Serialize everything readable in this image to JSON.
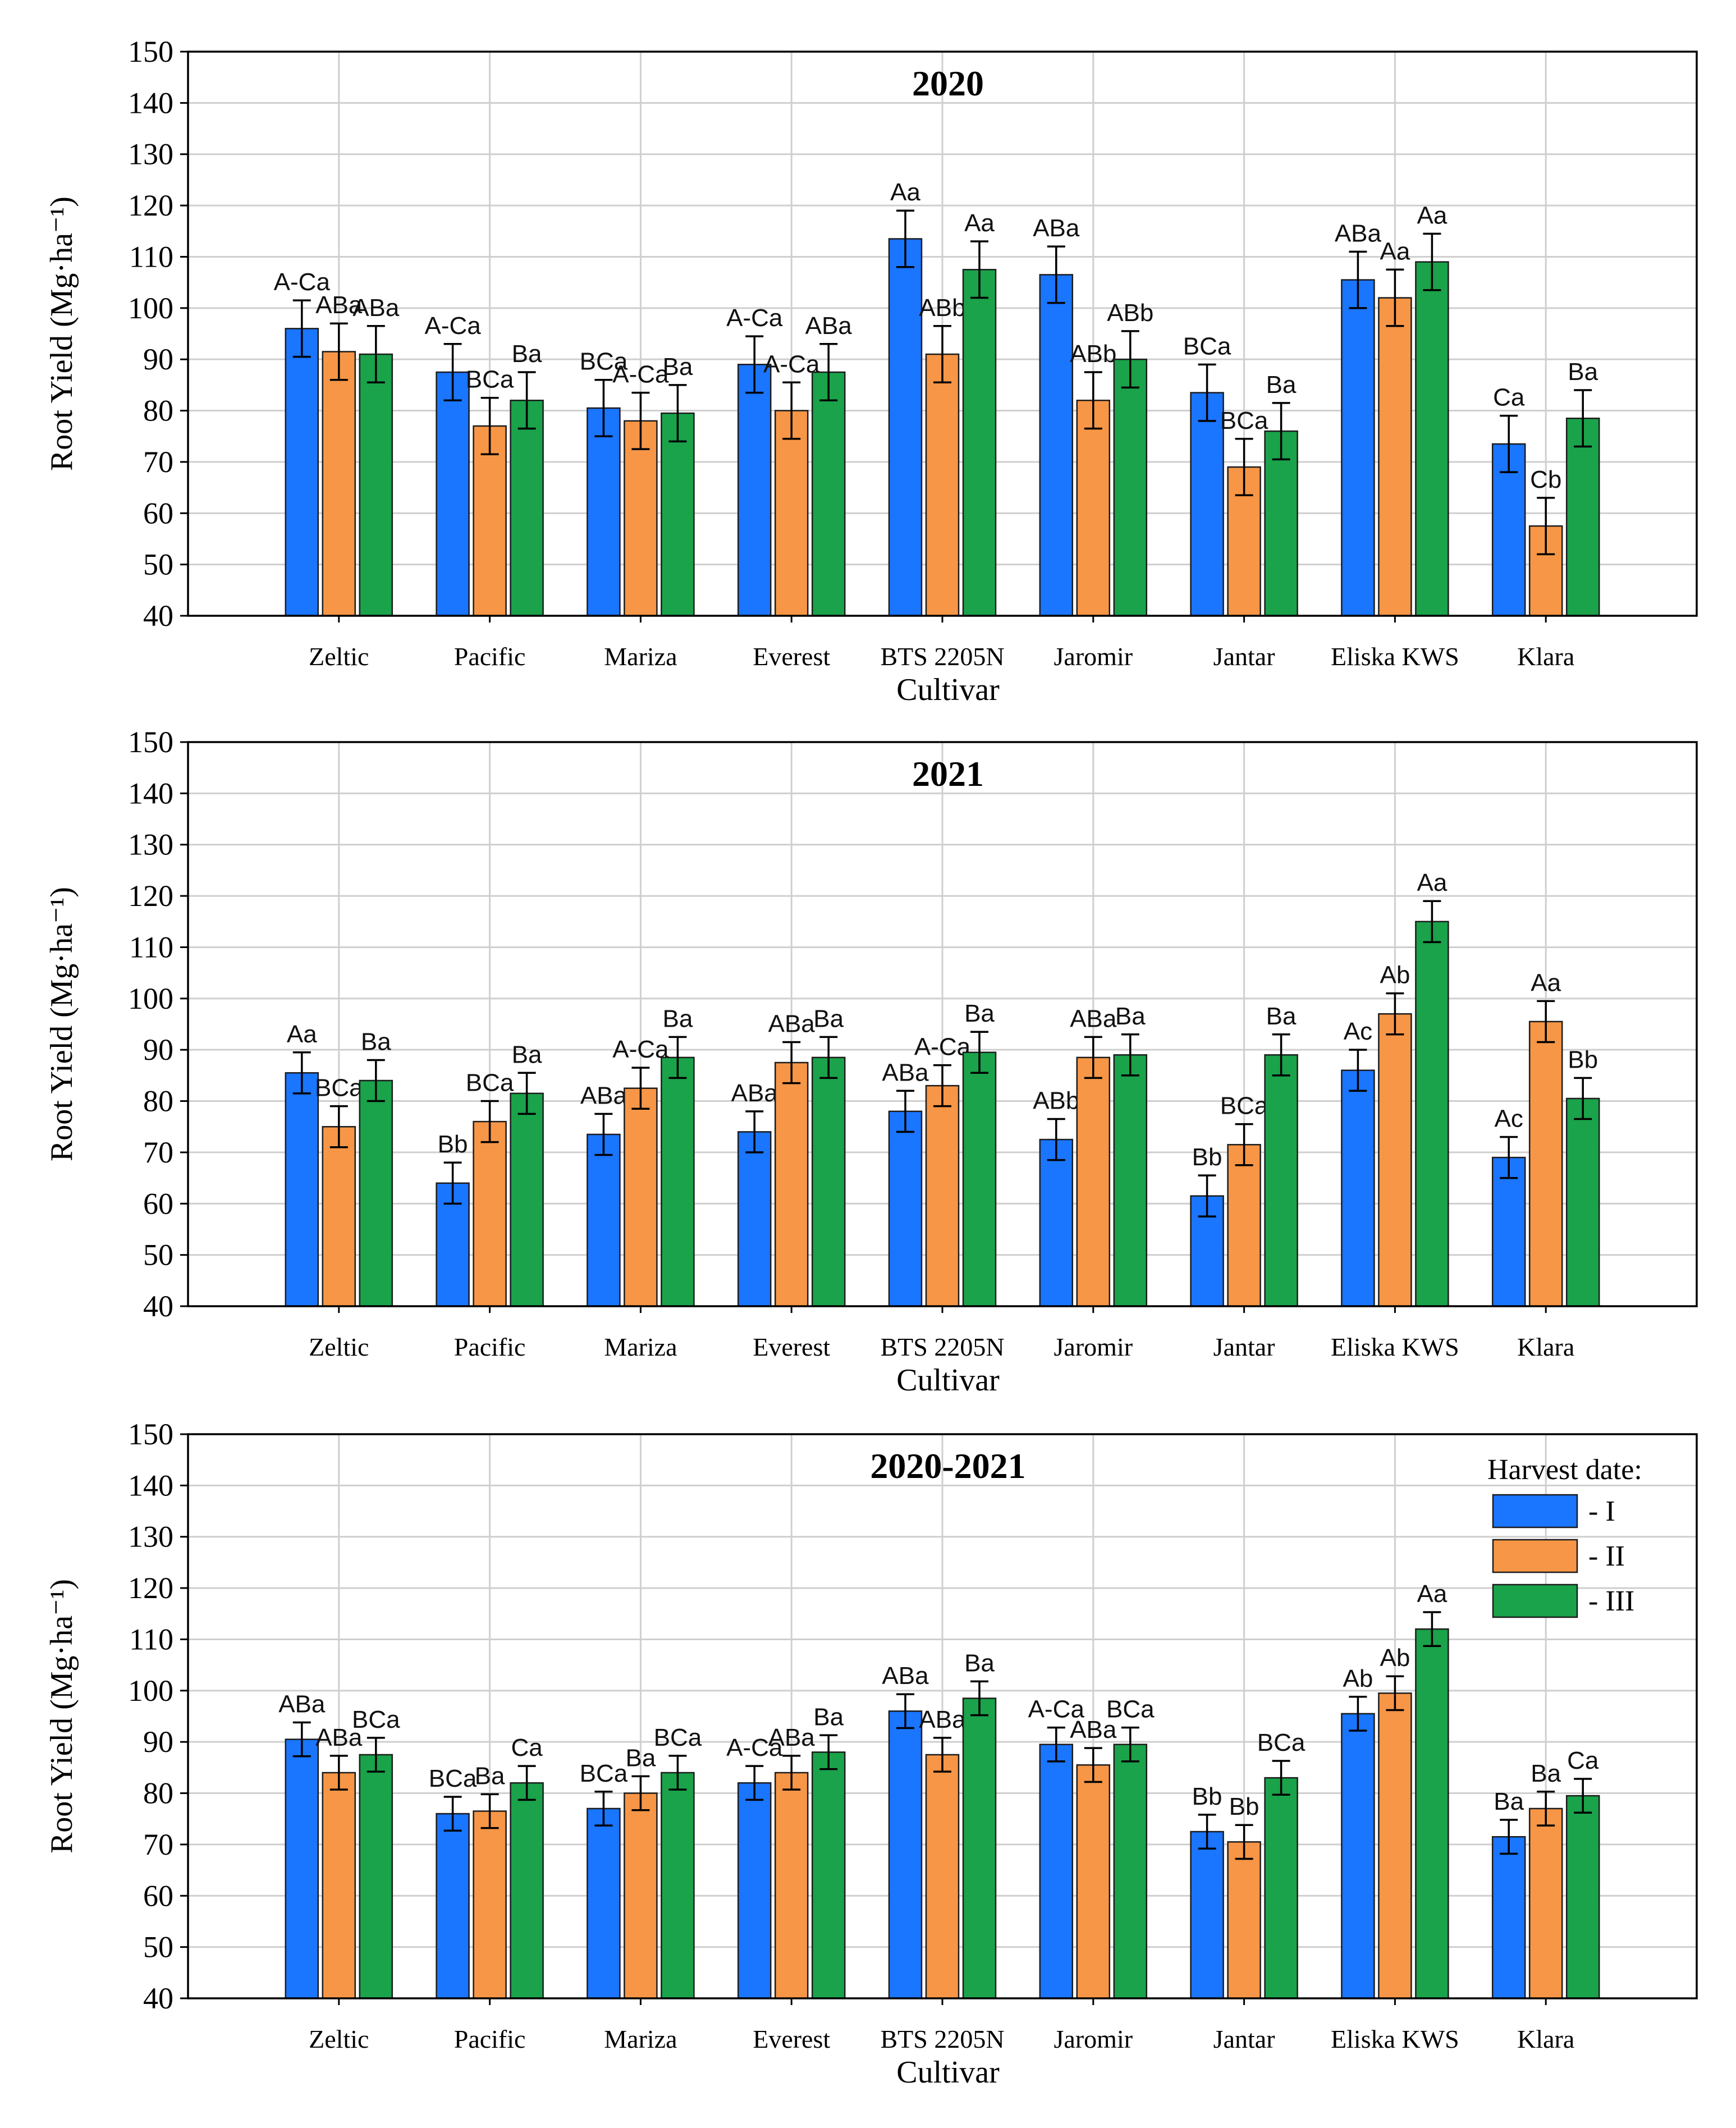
{
  "chart_data": [
    {
      "type": "bar",
      "title": "2020",
      "xlabel": "Cultivar",
      "ylabel": "Root Yield (Mg·ha⁻¹)",
      "ylim": [
        40,
        150
      ],
      "yticks": [
        40,
        50,
        60,
        70,
        80,
        90,
        100,
        110,
        120,
        130,
        140,
        150
      ],
      "grid": true,
      "categories": [
        "Zeltic",
        "Pacific",
        "Mariza",
        "Everest",
        "BTS 2205N",
        "Jaromir",
        "Jantar",
        "Eliska KWS",
        "Klara"
      ],
      "series": [
        {
          "name": "- I",
          "values": [
            96,
            87.5,
            80.5,
            89,
            113.5,
            106.5,
            83.5,
            105.5,
            73.5
          ],
          "errors": [
            5.5,
            5.5,
            5.5,
            5.5,
            5.5,
            5.5,
            5.5,
            5.5,
            5.5
          ],
          "labels": [
            "A-Ca",
            "A-Ca",
            "BCa",
            "A-Ca",
            "Aa",
            "ABa",
            "BCa",
            "ABa",
            "Ca"
          ]
        },
        {
          "name": "- II",
          "values": [
            91.5,
            77,
            78,
            80,
            91,
            82,
            69,
            102,
            57.5
          ],
          "errors": [
            5.5,
            5.5,
            5.5,
            5.5,
            5.5,
            5.5,
            5.5,
            5.5,
            5.5
          ],
          "labels": [
            "ABa",
            "BCa",
            "A-Ca",
            "A-Ca",
            "ABb",
            "ABb",
            "BCa",
            "Aa",
            "Cb"
          ]
        },
        {
          "name": "- III",
          "values": [
            91,
            82,
            79.5,
            87.5,
            107.5,
            90,
            76,
            109,
            78.5
          ],
          "errors": [
            5.5,
            5.5,
            5.5,
            5.5,
            5.5,
            5.5,
            5.5,
            5.5,
            5.5
          ],
          "labels": [
            "ABa",
            "Ba",
            "Ba",
            "ABa",
            "Aa",
            "ABb",
            "Ba",
            "Aa",
            "Ba"
          ]
        }
      ]
    },
    {
      "type": "bar",
      "title": "2021",
      "xlabel": "Cultivar",
      "ylabel": "Root Yield (Mg·ha⁻¹)",
      "ylim": [
        40,
        150
      ],
      "yticks": [
        40,
        50,
        60,
        70,
        80,
        90,
        100,
        110,
        120,
        130,
        140,
        150
      ],
      "grid": true,
      "categories": [
        "Zeltic",
        "Pacific",
        "Mariza",
        "Everest",
        "BTS 2205N",
        "Jaromir",
        "Jantar",
        "Eliska KWS",
        "Klara"
      ],
      "series": [
        {
          "name": "- I",
          "values": [
            85.5,
            64,
            73.5,
            74,
            78,
            72.5,
            61.5,
            86,
            69
          ],
          "errors": [
            4,
            4,
            4,
            4,
            4,
            4,
            4,
            4,
            4
          ],
          "labels": [
            "Aa",
            "Bb",
            "ABa",
            "ABa",
            "ABa",
            "ABb",
            "Bb",
            "Ac",
            "Ac"
          ]
        },
        {
          "name": "- II",
          "values": [
            75,
            76,
            82.5,
            87.5,
            83,
            88.5,
            71.5,
            97,
            95.5
          ],
          "errors": [
            4,
            4,
            4,
            4,
            4,
            4,
            4,
            4,
            4
          ],
          "labels": [
            "BCa",
            "BCa",
            "A-Ca",
            "ABa",
            "A-Ca",
            "ABa",
            "BCa",
            "Ab",
            "Aa"
          ]
        },
        {
          "name": "- III",
          "values": [
            84,
            81.5,
            88.5,
            88.5,
            89.5,
            89,
            89,
            115,
            80.5
          ],
          "errors": [
            4,
            4,
            4,
            4,
            4,
            4,
            4,
            4,
            4
          ],
          "labels": [
            "Ba",
            "Ba",
            "Ba",
            "Ba",
            "Ba",
            "Ba",
            "Ba",
            "Aa",
            "Bb"
          ]
        }
      ]
    },
    {
      "type": "bar",
      "title": "2020-2021",
      "xlabel": "Cultivar",
      "ylabel": "Root Yield (Mg·ha⁻¹)",
      "ylim": [
        40,
        150
      ],
      "yticks": [
        40,
        50,
        60,
        70,
        80,
        90,
        100,
        110,
        120,
        130,
        140,
        150
      ],
      "grid": true,
      "legend": {
        "title": "Harvest date:",
        "placement": "top-right"
      },
      "categories": [
        "Zeltic",
        "Pacific",
        "Mariza",
        "Everest",
        "BTS 2205N",
        "Jaromir",
        "Jantar",
        "Eliska KWS",
        "Klara"
      ],
      "series": [
        {
          "name": "- I",
          "values": [
            90.5,
            76,
            77,
            82,
            96,
            89.5,
            72.5,
            95.5,
            71.5
          ],
          "errors": [
            3.3,
            3.3,
            3.3,
            3.3,
            3.3,
            3.3,
            3.3,
            3.3,
            3.3
          ],
          "labels": [
            "ABa",
            "BCa",
            "BCa",
            "A-Ca",
            "ABa",
            "A-Ca",
            "Bb",
            "Ab",
            "Ba"
          ]
        },
        {
          "name": "- II",
          "values": [
            84,
            76.5,
            80,
            84,
            87.5,
            85.5,
            70.5,
            99.5,
            77
          ],
          "errors": [
            3.3,
            3.3,
            3.3,
            3.3,
            3.3,
            3.3,
            3.3,
            3.3,
            3.3
          ],
          "labels": [
            "ABa",
            "Ba",
            "Ba",
            "ABa",
            "ABa",
            "ABa",
            "Bb",
            "Ab",
            "Ba"
          ]
        },
        {
          "name": "- III",
          "values": [
            87.5,
            82,
            84,
            88,
            98.5,
            89.5,
            83,
            112,
            79.5
          ],
          "errors": [
            3.3,
            3.3,
            3.3,
            3.3,
            3.3,
            3.3,
            3.3,
            3.3,
            3.3
          ],
          "labels": [
            "BCa",
            "Ca",
            "BCa",
            "Ba",
            "Ba",
            "BCa",
            "BCa",
            "Aa",
            "Ca"
          ]
        }
      ]
    }
  ],
  "colors": {
    "series": [
      "#1a75ff",
      "#f79646",
      "#1aa34a"
    ],
    "bar_edge": "#1c1c1c",
    "grid": "#cfcfcf",
    "axis": "#000000"
  }
}
